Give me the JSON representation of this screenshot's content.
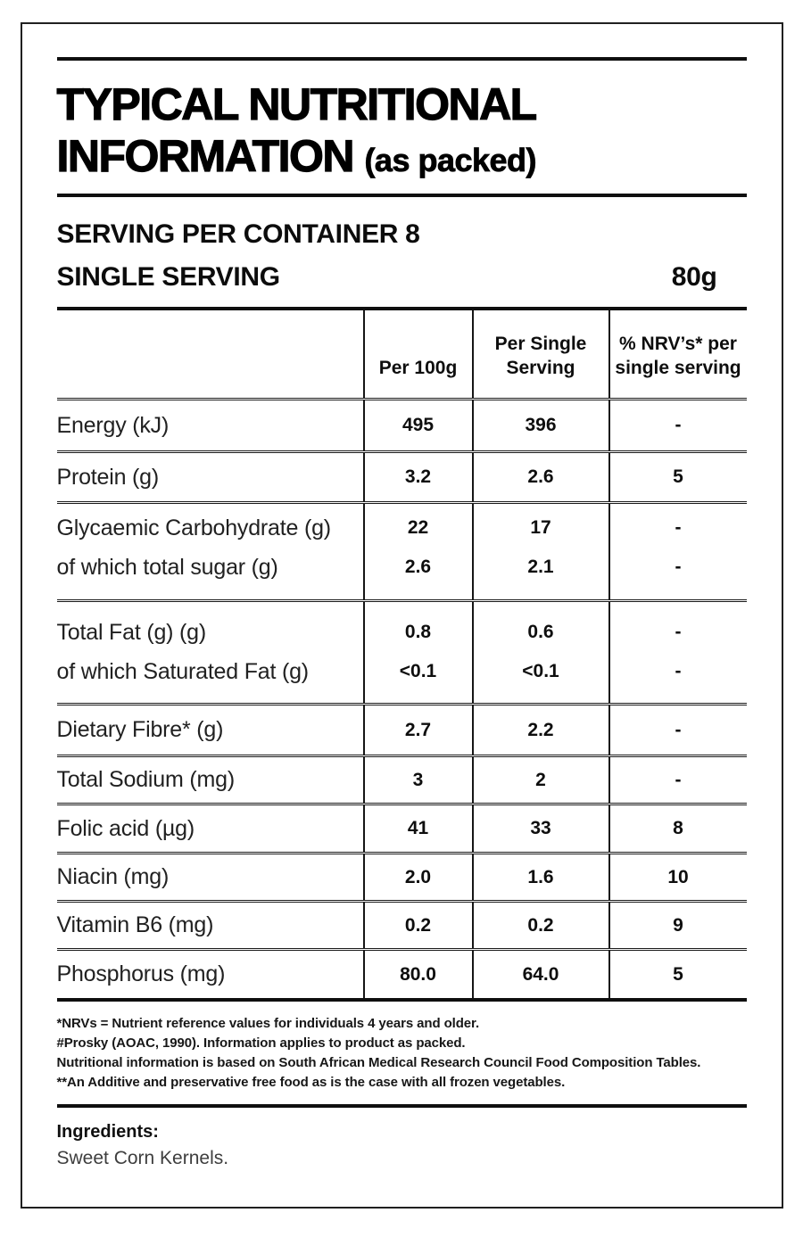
{
  "title": {
    "line1": "TYPICAL NUTRITIONAL",
    "line2": "INFORMATION",
    "suffix": "(as packed)"
  },
  "serving": {
    "per_container": "SERVING PER CONTAINER 8",
    "single_label": "SINGLE SERVING",
    "single_value": "80g"
  },
  "table": {
    "headers": {
      "item": "",
      "per_100g": "Per 100g",
      "per_serving": "Per Single Serving",
      "nrv": "% NRV’s* per single serving"
    },
    "rows": [
      {
        "type": "single",
        "label": "Energy (kJ)",
        "per_100g": "495",
        "per_serving": "396",
        "nrv": "-"
      },
      {
        "type": "single",
        "label": "Protein (g)",
        "per_100g": "3.2",
        "per_serving": "2.6",
        "nrv": "5"
      },
      {
        "type": "group",
        "lines": [
          {
            "label": "Glycaemic Carbohydrate (g)",
            "per_100g": "22",
            "per_serving": "17",
            "nrv": "-"
          },
          {
            "label": "of which total sugar (g)",
            "per_100g": "2.6",
            "per_serving": "2.1",
            "nrv": "-"
          }
        ]
      },
      {
        "type": "group",
        "lines": [
          {
            "label": "Total Fat (g) (g)",
            "per_100g": "0.8",
            "per_serving": "0.6",
            "nrv": "-"
          },
          {
            "label": "of which Saturated Fat (g)",
            "per_100g": "<0.1",
            "per_serving": "<0.1",
            "nrv": "-"
          }
        ]
      },
      {
        "type": "single",
        "label": "Dietary Fibre* (g)",
        "per_100g": "2.7",
        "per_serving": "2.2",
        "nrv": "-"
      },
      {
        "type": "single",
        "label": "Total Sodium (mg)",
        "per_100g": "3",
        "per_serving": "2",
        "nrv": "-"
      },
      {
        "type": "single",
        "label": "Folic acid (µg)",
        "per_100g": "41",
        "per_serving": "33",
        "nrv": "8"
      },
      {
        "type": "single",
        "label": "Niacin (mg)",
        "per_100g": "2.0",
        "per_serving": "1.6",
        "nrv": "10"
      },
      {
        "type": "single",
        "label": "Vitamin B6 (mg)",
        "per_100g": "0.2",
        "per_serving": "0.2",
        "nrv": "9"
      },
      {
        "type": "single",
        "label": "Phosphorus (mg)",
        "per_100g": "80.0",
        "per_serving": "64.0",
        "nrv": "5"
      }
    ]
  },
  "footnotes": [
    "*NRVs = Nutrient reference values for individuals 4 years and older.",
    "#Prosky (AOAC, 1990). Information applies to product as packed.",
    "Nutritional information is based on South African Medical Research Council Food Composition Tables.",
    "**An Additive and preservative free food as is the case with all frozen vegetables."
  ],
  "ingredients": {
    "label": "Ingredients:",
    "value": "Sweet Corn Kernels."
  },
  "colors": {
    "text": "#121212",
    "rule": "#0f0f0f",
    "background": "#ffffff"
  }
}
